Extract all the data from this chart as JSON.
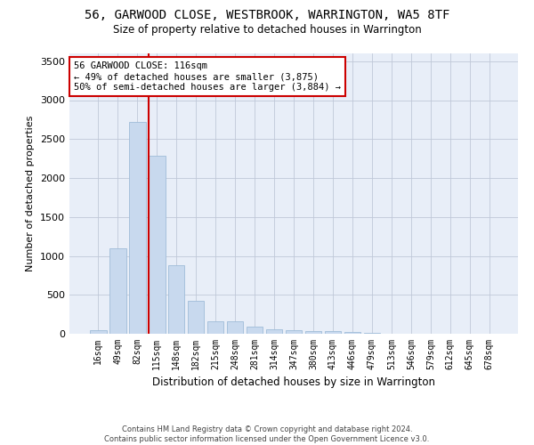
{
  "title": "56, GARWOOD CLOSE, WESTBROOK, WARRINGTON, WA5 8TF",
  "subtitle": "Size of property relative to detached houses in Warrington",
  "xlabel": "Distribution of detached houses by size in Warrington",
  "ylabel": "Number of detached properties",
  "bar_color": "#c8d9ee",
  "bar_edgecolor": "#a0bcd8",
  "categories": [
    "16sqm",
    "49sqm",
    "82sqm",
    "115sqm",
    "148sqm",
    "182sqm",
    "215sqm",
    "248sqm",
    "281sqm",
    "314sqm",
    "347sqm",
    "380sqm",
    "413sqm",
    "446sqm",
    "479sqm",
    "513sqm",
    "546sqm",
    "579sqm",
    "612sqm",
    "645sqm",
    "678sqm"
  ],
  "values": [
    50,
    1100,
    2720,
    2290,
    875,
    420,
    165,
    165,
    90,
    60,
    50,
    40,
    30,
    20,
    10,
    0,
    0,
    0,
    0,
    0,
    0
  ],
  "ylim": [
    0,
    3600
  ],
  "yticks": [
    0,
    500,
    1000,
    1500,
    2000,
    2500,
    3000,
    3500
  ],
  "vline_color": "#cc0000",
  "annotation_line1": "56 GARWOOD CLOSE: 116sqm",
  "annotation_line2": "← 49% of detached houses are smaller (3,875)",
  "annotation_line3": "50% of semi-detached houses are larger (3,884) →",
  "annotation_box_color": "#cc0000",
  "bg_color": "#e8eef8",
  "footer_line1": "Contains HM Land Registry data © Crown copyright and database right 2024.",
  "footer_line2": "Contains public sector information licensed under the Open Government Licence v3.0."
}
